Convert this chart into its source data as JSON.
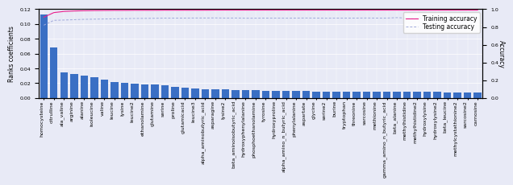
{
  "categories": [
    "homocysteine",
    "citrulline",
    "ala_valine",
    "arginine",
    "alanine",
    "isoleucine",
    "valine",
    "leucine",
    "lysine",
    "leucine2",
    "ethanolamine",
    "glutamine",
    "serine",
    "proline",
    "glutamicacid",
    "leucine3",
    "alpha_aminobutyric_acid",
    "asparagine",
    "lysine2",
    "beta_aminoisobutyric_acid",
    "hydroxyphenylalanine",
    "phosphoethanolamine",
    "tyrosine",
    "hydroxyproline",
    "alpha_amino_n_butyric_acid",
    "phenylalanine",
    "aspartate",
    "glycine",
    "serine2",
    "burine",
    "tryptophan",
    "threonine",
    "sarcosine",
    "methionine",
    "gamma_amino_n_butyric_acid",
    "beta_alanine",
    "methylhistidine",
    "methylhistidine2",
    "hydroxylysine",
    "hydroxylysine2",
    "beta_leucine",
    "methylcystathionine2",
    "sarcosine2",
    "carnosine"
  ],
  "bar_values": [
    0.113,
    0.068,
    0.035,
    0.032,
    0.03,
    0.028,
    0.025,
    0.022,
    0.021,
    0.019,
    0.018,
    0.018,
    0.017,
    0.015,
    0.014,
    0.013,
    0.012,
    0.012,
    0.012,
    0.011,
    0.011,
    0.011,
    0.01,
    0.01,
    0.01,
    0.01,
    0.01,
    0.009,
    0.009,
    0.009,
    0.009,
    0.009,
    0.008,
    0.008,
    0.008,
    0.008,
    0.008,
    0.008,
    0.008,
    0.008,
    0.007,
    0.007,
    0.007,
    0.007
  ],
  "bar_color": "#3a6fc4",
  "training_accuracy": [
    0.91,
    0.962,
    0.975,
    0.98,
    0.983,
    0.985,
    0.986,
    0.987,
    0.987,
    0.988,
    0.988,
    0.988,
    0.989,
    0.989,
    0.989,
    0.989,
    0.989,
    0.99,
    0.99,
    0.99,
    0.99,
    0.99,
    0.99,
    0.99,
    0.99,
    0.99,
    0.99,
    0.99,
    0.99,
    0.99,
    0.99,
    0.99,
    0.99,
    0.99,
    0.99,
    0.99,
    0.99,
    0.99,
    0.99,
    0.99,
    0.99,
    0.99,
    0.99,
    0.99
  ],
  "testing_accuracy": [
    0.82,
    0.875,
    0.878,
    0.882,
    0.886,
    0.888,
    0.89,
    0.892,
    0.894,
    0.896,
    0.897,
    0.898,
    0.9,
    0.9,
    0.9,
    0.901,
    0.901,
    0.902,
    0.9,
    0.901,
    0.899,
    0.899,
    0.9,
    0.9,
    0.899,
    0.9,
    0.901,
    0.9,
    0.899,
    0.9,
    0.9,
    0.9,
    0.901,
    0.9,
    0.9,
    0.905,
    0.9,
    0.898,
    0.9,
    0.9,
    0.901,
    0.9,
    0.901,
    0.9
  ],
  "ylim_left": [
    0.0,
    0.12
  ],
  "ylim_right": [
    0.0,
    1.0
  ],
  "ylabel_left": "Ranks coefficients",
  "ylabel_right": "Accuracy",
  "bg_color": "#e8eaf6",
  "legend_train_color": "#e91e8c",
  "legend_test_color": "#9fa8da",
  "xlabel_rotation": 90,
  "tick_fontsize": 4.5,
  "label_fontsize": 5.5,
  "legend_fontsize": 5.5
}
